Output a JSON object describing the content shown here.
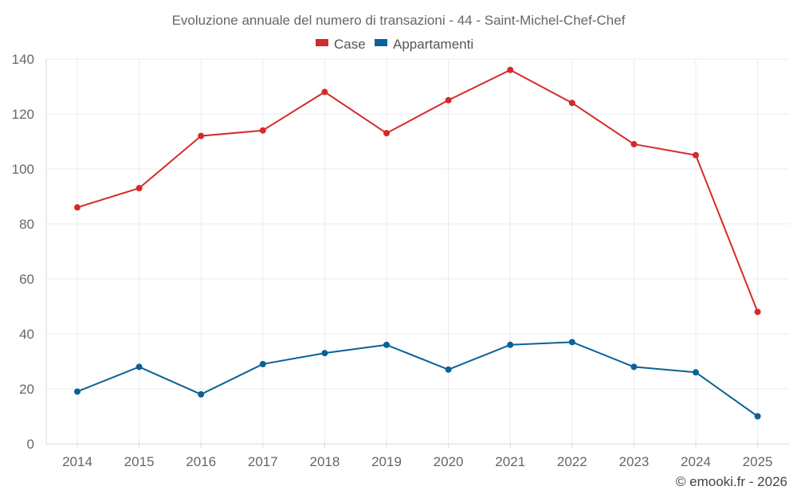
{
  "chart_data": {
    "type": "line",
    "title": "Evoluzione annuale del numero di transazioni - 44 - Saint-Michel-Chef-Chef",
    "xlabel": "",
    "ylabel": "",
    "categories": [
      "2014",
      "2015",
      "2016",
      "2017",
      "2018",
      "2019",
      "2020",
      "2021",
      "2022",
      "2023",
      "2024",
      "2025"
    ],
    "ylim": [
      0,
      140
    ],
    "yticks": [
      0,
      20,
      40,
      60,
      80,
      100,
      120,
      140
    ],
    "grid": true,
    "legend_position": "top-center",
    "series": [
      {
        "name": "Case",
        "color": "#d42a2a",
        "values": [
          86,
          93,
          112,
          114,
          128,
          113,
          125,
          136,
          124,
          109,
          105,
          48
        ]
      },
      {
        "name": "Appartamenti",
        "color": "#0b6199",
        "values": [
          19,
          28,
          18,
          29,
          33,
          36,
          27,
          36,
          37,
          28,
          26,
          10
        ]
      }
    ]
  },
  "credit": "© emooki.fr - 2026"
}
